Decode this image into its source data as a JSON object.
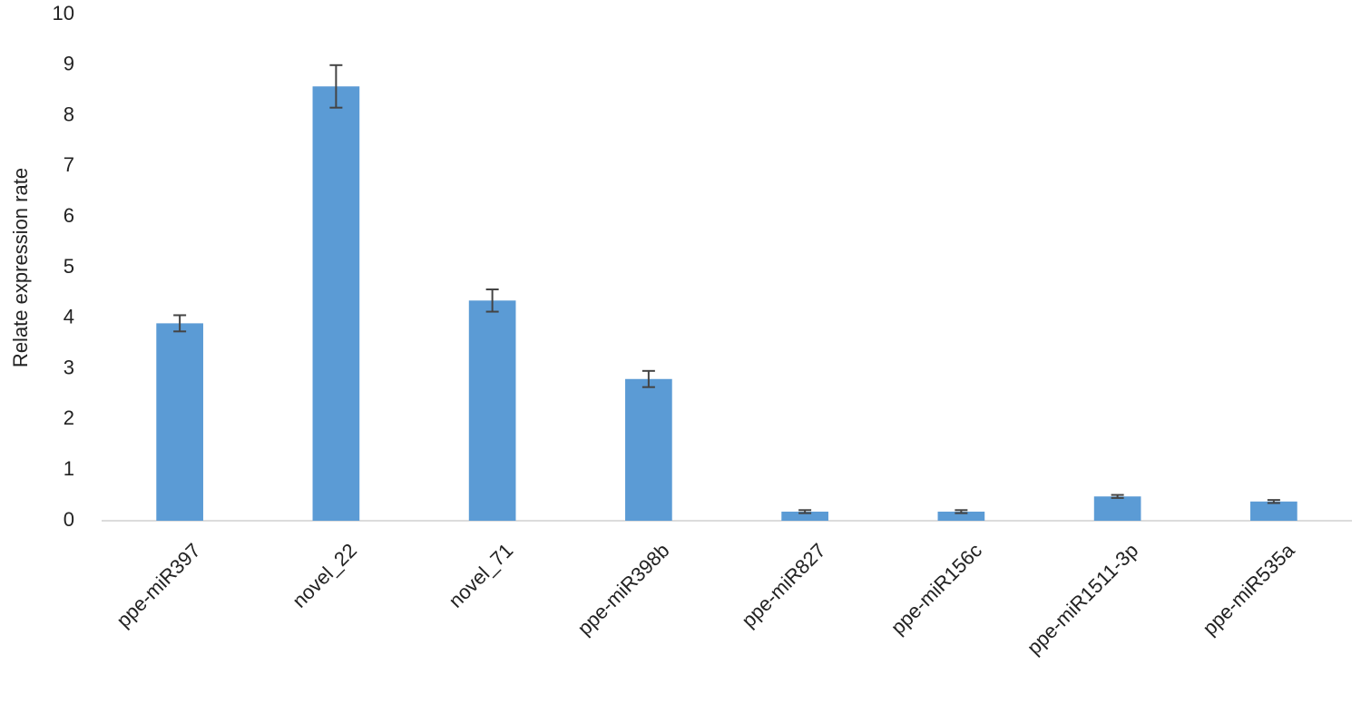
{
  "chart_data": {
    "type": "bar",
    "y_label": "Relate expression rate",
    "categories": [
      "ppe-miR397",
      "novel_22",
      "novel_71",
      "ppe-miR398b",
      "ppe-miR827",
      "ppe-miR156c",
      "ppe-miR1511-3p",
      "ppe-miR535a"
    ],
    "values": [
      3.9,
      8.58,
      4.35,
      2.8,
      0.18,
      0.18,
      0.48,
      0.38
    ],
    "errors": [
      0.16,
      0.42,
      0.22,
      0.16,
      0.03,
      0.03,
      0.03,
      0.03
    ],
    "color": "#5b9bd5",
    "error_color": "#444444",
    "ylim": [
      0,
      10
    ],
    "yticks": [
      0,
      1,
      2,
      3,
      4,
      5,
      6,
      7,
      8,
      9,
      10
    ],
    "grid": false
  }
}
